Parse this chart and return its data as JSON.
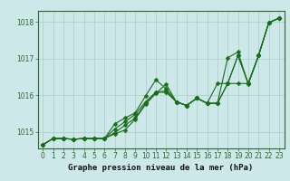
{
  "background_color": "#cce8e8",
  "plot_bg_color": "#cce8e8",
  "grid_color": "#aacccc",
  "line_color": "#1a6e1a",
  "marker_color": "#1a6e1a",
  "xlabel": "Graphe pression niveau de la mer (hPa)",
  "ylim": [
    1014.55,
    1018.3
  ],
  "xlim": [
    -0.5,
    23.5
  ],
  "yticks": [
    1015,
    1016,
    1017,
    1018
  ],
  "xticks": [
    0,
    1,
    2,
    3,
    4,
    5,
    6,
    7,
    8,
    9,
    10,
    11,
    12,
    13,
    14,
    15,
    16,
    17,
    18,
    19,
    20,
    21,
    22,
    23
  ],
  "series": [
    [
      1014.65,
      1014.82,
      1014.82,
      1014.8,
      1014.82,
      1014.82,
      1014.82,
      1014.95,
      1015.05,
      1015.35,
      1015.75,
      1016.05,
      1016.3,
      1015.82,
      1015.72,
      1015.92,
      1015.78,
      1015.78,
      1017.02,
      1017.18,
      1016.3,
      1017.08,
      1017.98,
      1018.1
    ],
    [
      1014.65,
      1014.82,
      1014.82,
      1014.8,
      1014.82,
      1014.82,
      1014.82,
      1015.22,
      1015.38,
      1015.52,
      1015.98,
      1016.42,
      1016.18,
      1015.82,
      1015.72,
      1015.92,
      1015.78,
      1016.32,
      1016.32,
      1016.32,
      1016.32,
      1017.08,
      1017.98,
      1018.1
    ],
    [
      1014.65,
      1014.82,
      1014.82,
      1014.8,
      1014.82,
      1014.82,
      1014.82,
      1015.08,
      1015.28,
      1015.48,
      1015.82,
      1016.08,
      1016.12,
      1015.82,
      1015.72,
      1015.92,
      1015.78,
      1015.78,
      1016.32,
      1017.08,
      1016.32,
      1017.08,
      1017.98,
      1018.1
    ],
    [
      1014.65,
      1014.82,
      1014.82,
      1014.8,
      1014.82,
      1014.82,
      1014.82,
      1014.98,
      1015.18,
      1015.38,
      1015.78,
      1016.08,
      1016.08,
      1015.82,
      1015.72,
      1015.92,
      1015.78,
      1015.78,
      1016.32,
      1017.08,
      1016.32,
      1017.08,
      1017.98,
      1018.1
    ]
  ],
  "marker_size": 2.5,
  "linewidth": 0.8,
  "tick_fontsize": 5.5,
  "label_fontsize": 6.5,
  "label_fontweight": "bold",
  "spine_color": "#336633",
  "tick_color": "#336633"
}
